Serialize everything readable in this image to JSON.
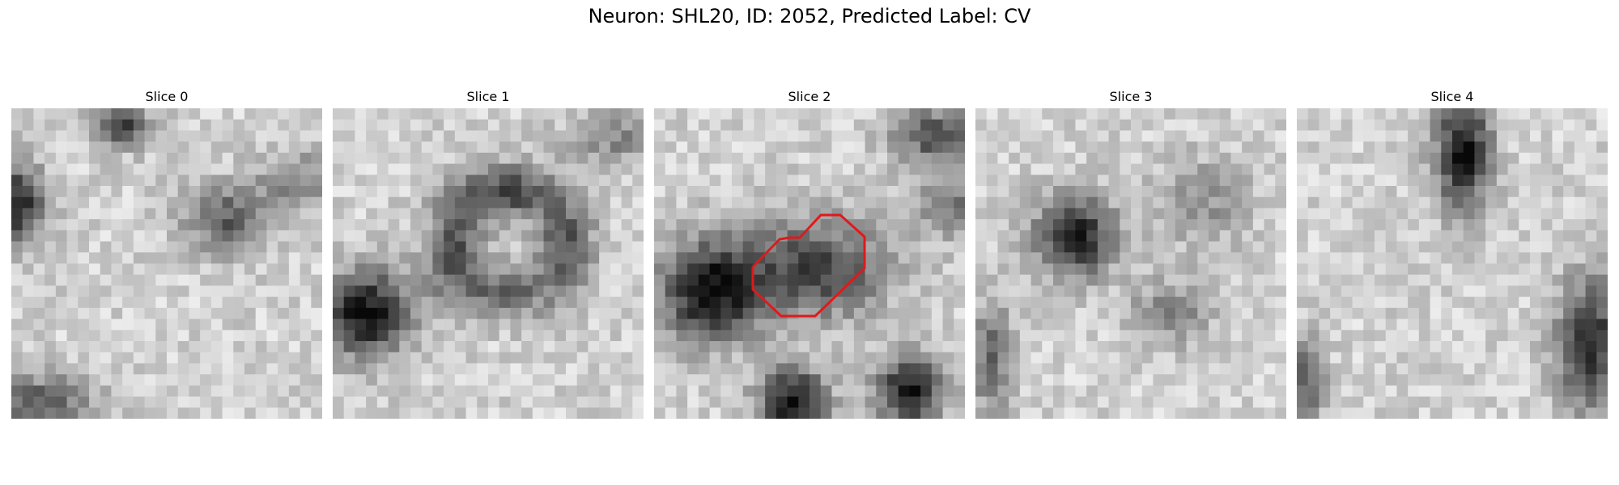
{
  "figure": {
    "title": "Neuron: SHL20, ID: 2052, Predicted Label: CV"
  },
  "panels": [
    {
      "title": "Slice 0"
    },
    {
      "title": "Slice 1"
    },
    {
      "title": "Slice 2",
      "outline_color": "#e0191c"
    },
    {
      "title": "Slice 3"
    },
    {
      "title": "Slice 4"
    }
  ]
}
